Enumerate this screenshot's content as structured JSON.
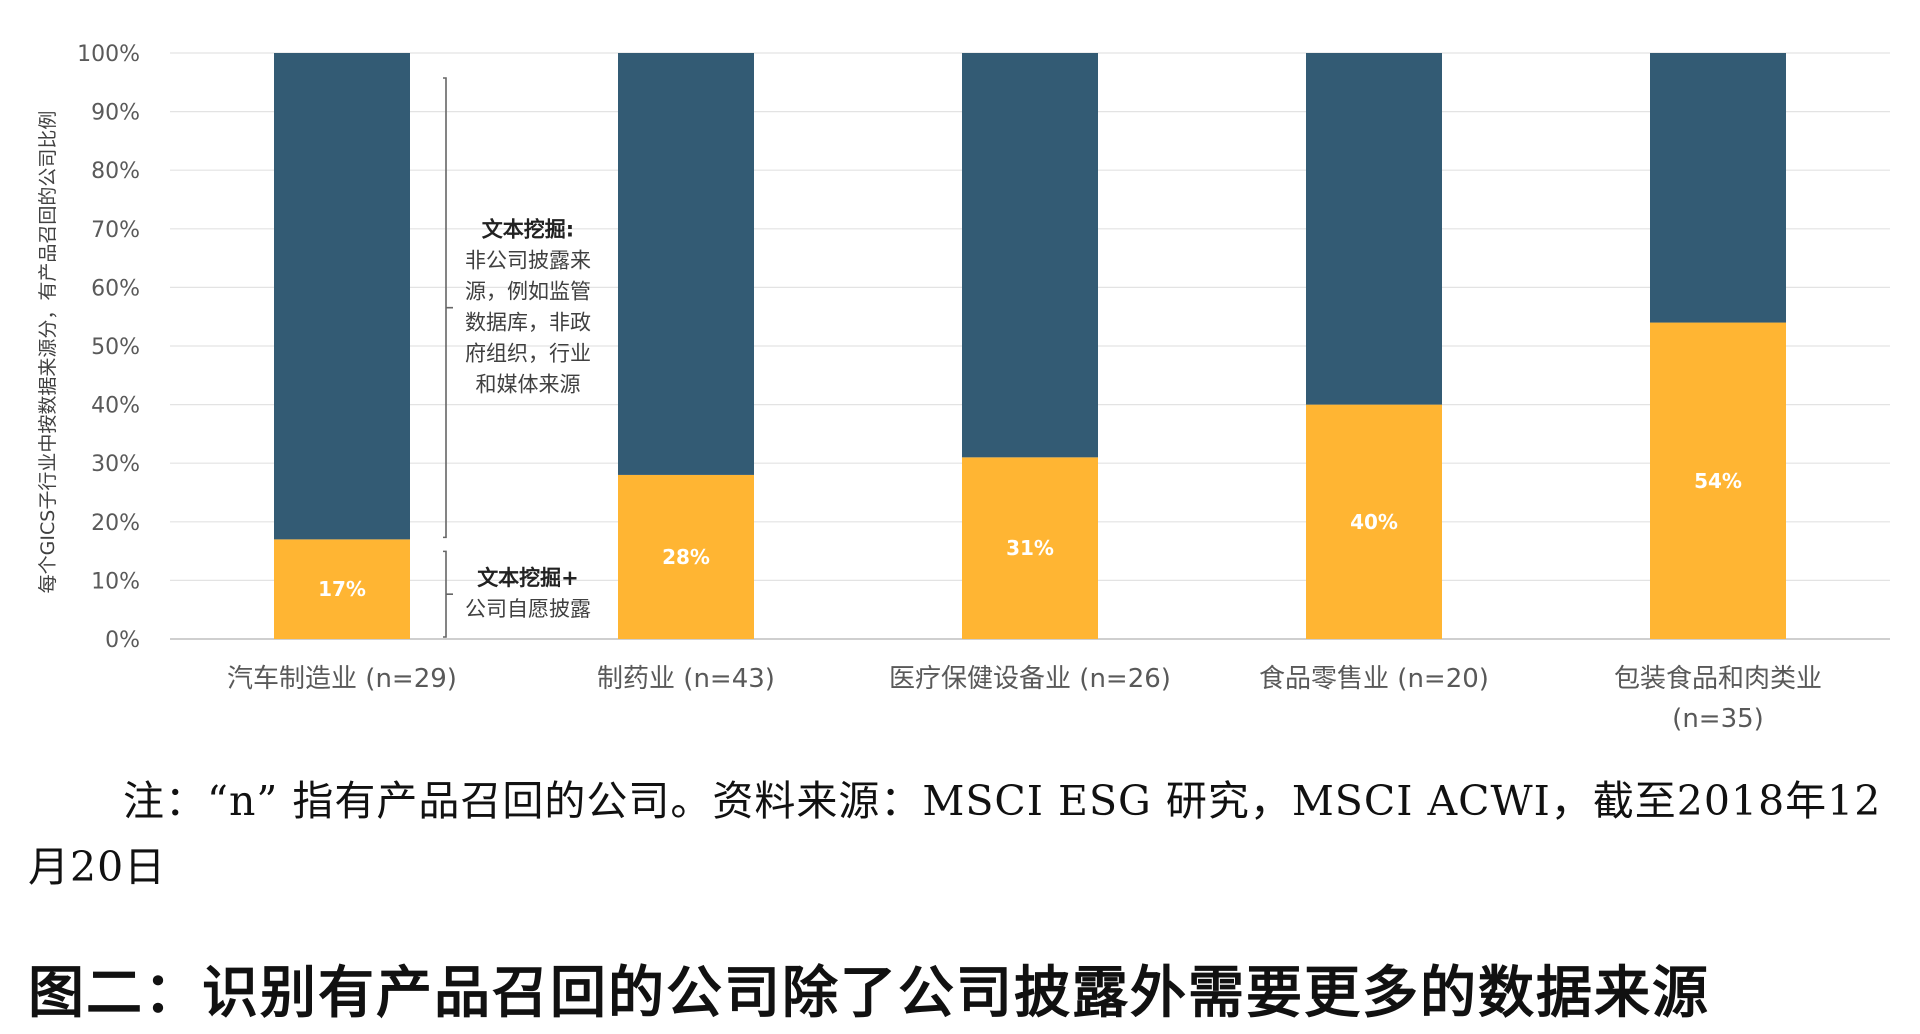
{
  "chart_data": {
    "type": "bar",
    "stacked": true,
    "categories": [
      "汽车制造业 (n=29)",
      "制药业 (n=43)",
      "医疗保健设备业 (n=26)",
      "食品零售业 (n=20)",
      "包装食品和肉类业 (n=35)"
    ],
    "series": [
      {
        "values": [
          17,
          28,
          31,
          40,
          54
        ],
        "color": "#FFB533"
      },
      {
        "values": [
          83,
          72,
          69,
          60,
          46
        ],
        "color": "#335B74"
      }
    ],
    "data_labels": [
      "17%",
      "28%",
      "31%",
      "40%",
      "54%"
    ],
    "yticks": [
      "0%",
      "10%",
      "20%",
      "30%",
      "40%",
      "50%",
      "60%",
      "70%",
      "80%",
      "90%",
      "100%"
    ],
    "ylim": [
      0,
      100
    ],
    "ylabel": "每个GICS子行业中按数据来源分，有产品召回的公司比例",
    "grid": true,
    "annotations": [
      {
        "title": "文本挖掘:",
        "lines": [
          "非公司披露来",
          "源，例如监管",
          "数据库，非政",
          "府组织，行业",
          "和媒体来源"
        ],
        "range": [
          17,
          100
        ]
      },
      {
        "title": "文本挖掘+",
        "lines": [
          "公司自愿披露"
        ],
        "range": [
          0,
          17
        ]
      }
    ]
  },
  "note": "注：“n” 指有产品召回的公司。资料来源：MSCI ESG 研究，MSCI ACWI，截至2018年12月20日",
  "caption": "图二：识别有产品召回的公司除了公司披露外需要更多的数据来源"
}
